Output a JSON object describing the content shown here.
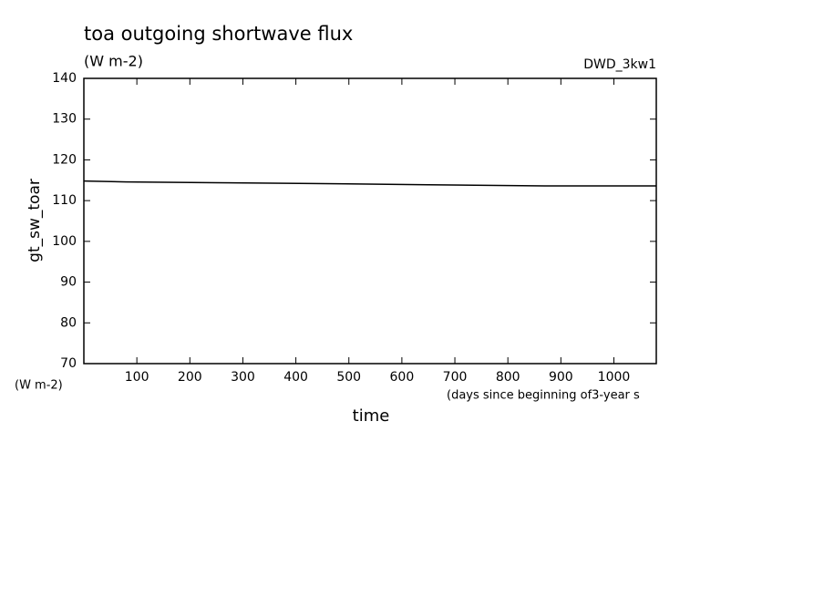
{
  "chart_data": {
    "type": "line",
    "title": "toa outgoing shortwave flux",
    "subtitle": "(W m-2)",
    "run_label": "DWD_3kw1",
    "ylabel": "gt_sw_toar",
    "yunits": "(W m-2)",
    "xlabel": "time",
    "xunits": "(days since beginning of3-year s",
    "x": [
      0,
      80,
      250,
      430,
      650,
      870,
      1080
    ],
    "series": [
      {
        "name": "gt_sw_toar",
        "color": "#000000",
        "values": [
          114.8,
          114.6,
          114.4,
          114.2,
          113.9,
          113.6,
          113.6
        ]
      }
    ],
    "xlim": [
      0,
      1080
    ],
    "xticks": [
      100,
      200,
      300,
      400,
      500,
      600,
      700,
      800,
      900,
      1000
    ],
    "ylim": [
      70,
      140
    ],
    "yticks": [
      70,
      80,
      90,
      100,
      110,
      120,
      130,
      140
    ]
  }
}
